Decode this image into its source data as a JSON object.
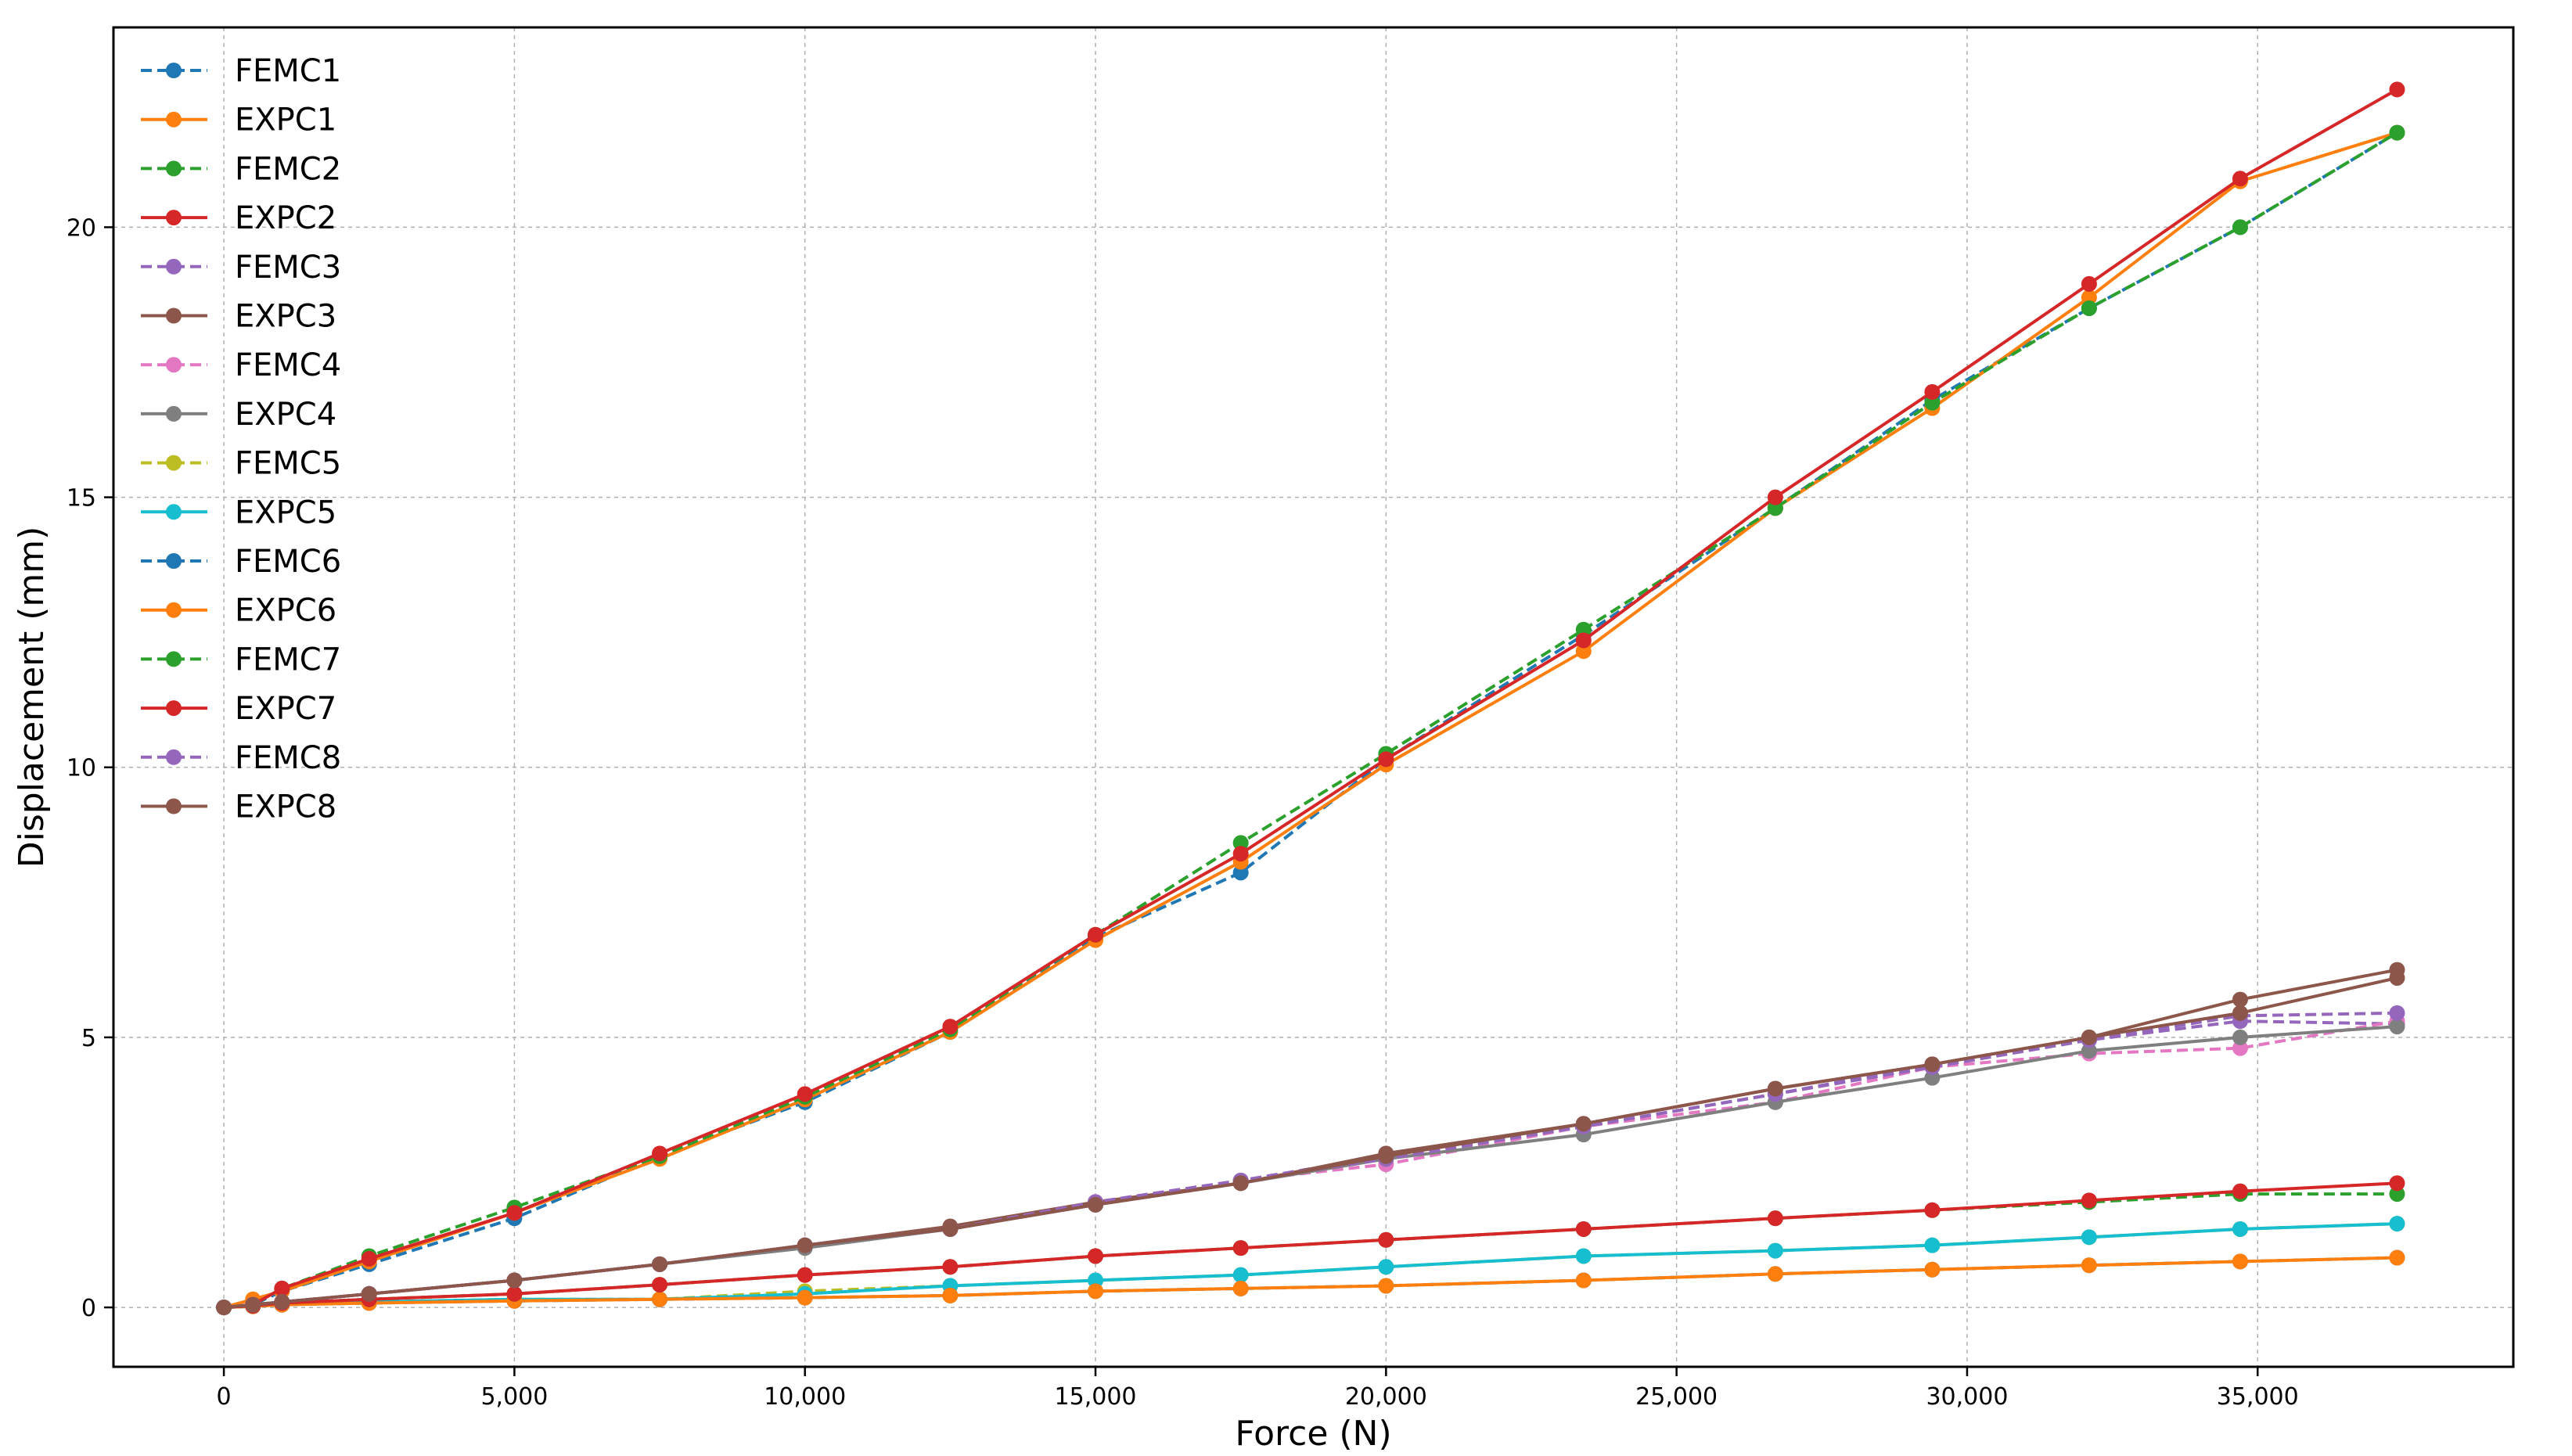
{
  "chart_data": {
    "type": "line",
    "xlabel": "Force (N)",
    "ylabel": "Displacement (mm)",
    "xlim": [
      -1900,
      39400
    ],
    "ylim": [
      -1.1,
      23.7
    ],
    "xticks": [
      0,
      5000,
      10000,
      15000,
      20000,
      25000,
      30000,
      35000
    ],
    "xtick_labels": [
      "0",
      "5,000",
      "10,000",
      "15,000",
      "20,000",
      "25,000",
      "30,000",
      "35,000"
    ],
    "yticks": [
      0,
      5,
      10,
      15,
      20
    ],
    "ytick_labels": [
      "0",
      "5",
      "10",
      "15",
      "20"
    ],
    "grid": true,
    "legend_position": "top-left",
    "series": [
      {
        "name": "FEMC1",
        "style": "dashed",
        "color": "#1f77b4",
        "x": [
          0,
          500,
          1000,
          2500,
          5000,
          7500,
          10000,
          12500,
          15000,
          17500,
          20000,
          23400,
          26700,
          29400,
          32100,
          34700,
          37400
        ],
        "y": [
          0,
          0.05,
          0.3,
          0.8,
          1.65,
          2.8,
          3.8,
          5.1,
          6.85,
          8.05,
          10.15,
          12.45,
          14.8,
          16.8,
          18.5,
          20.0,
          21.75
        ]
      },
      {
        "name": "EXPC1",
        "style": "solid",
        "color": "#ff7f0e",
        "x": [
          0,
          500,
          1000,
          2500,
          5000,
          7500,
          10000,
          12500,
          15000,
          17500,
          20000,
          23400,
          26700,
          29400,
          32100,
          34700,
          37400
        ],
        "y": [
          0,
          0.15,
          0.3,
          0.85,
          1.75,
          2.75,
          3.85,
          5.1,
          6.8,
          8.25,
          10.05,
          12.15,
          14.8,
          16.65,
          18.7,
          20.85,
          21.75
        ]
      },
      {
        "name": "FEMC2",
        "style": "dashed",
        "color": "#2ca02c",
        "x": [
          0,
          500,
          1000,
          2500,
          5000,
          7500,
          10000,
          12500,
          15000,
          17500,
          20000,
          23400,
          26700,
          29400,
          32100,
          34700,
          37400
        ],
        "y": [
          0,
          0.05,
          0.35,
          0.95,
          1.85,
          2.8,
          3.9,
          5.15,
          6.9,
          8.6,
          10.25,
          12.55,
          14.8,
          16.75,
          18.5,
          20.0,
          21.75
        ]
      },
      {
        "name": "EXPC2",
        "style": "solid",
        "color": "#d62728",
        "x": [
          0,
          500,
          1000,
          2500,
          5000,
          7500,
          10000,
          12500,
          15000,
          17500,
          20000,
          23400,
          26700,
          29400,
          32100,
          34700,
          37400
        ],
        "y": [
          0,
          0.05,
          0.35,
          0.9,
          1.75,
          2.85,
          3.95,
          5.2,
          6.9,
          8.4,
          10.15,
          12.35,
          15.0,
          16.95,
          18.95,
          20.9,
          22.55
        ]
      },
      {
        "name": "FEMC3",
        "style": "dashed",
        "color": "#9467bd",
        "x": [
          0,
          500,
          1000,
          2500,
          5000,
          7500,
          10000,
          12500,
          15000,
          17500,
          20000,
          23400,
          26700,
          29400,
          32100,
          34700,
          37400
        ],
        "y": [
          0,
          0.05,
          0.1,
          0.25,
          0.5,
          0.8,
          1.15,
          1.45,
          1.95,
          2.35,
          2.8,
          3.35,
          3.95,
          4.5,
          4.95,
          5.3,
          5.25
        ]
      },
      {
        "name": "EXPC3",
        "style": "solid",
        "color": "#8c564b",
        "x": [
          0,
          500,
          1000,
          2500,
          5000,
          7500,
          10000,
          12500,
          15000,
          17500,
          20000,
          23400,
          26700,
          29400,
          32100,
          34700,
          37400
        ],
        "y": [
          0,
          0.05,
          0.1,
          0.25,
          0.5,
          0.8,
          1.15,
          1.5,
          1.95,
          2.3,
          2.85,
          3.4,
          4.05,
          4.5,
          5.0,
          5.7,
          6.25
        ]
      },
      {
        "name": "FEMC4",
        "style": "dashed",
        "color": "#e377c2",
        "x": [
          0,
          500,
          1000,
          2500,
          5000,
          7500,
          10000,
          12500,
          15000,
          17500,
          20000,
          23400,
          26700,
          29400,
          32100,
          34700,
          37400
        ],
        "y": [
          0,
          0.05,
          0.1,
          0.25,
          0.5,
          0.8,
          1.15,
          1.45,
          1.95,
          2.35,
          2.65,
          3.35,
          3.8,
          4.45,
          4.7,
          4.8,
          5.3
        ]
      },
      {
        "name": "EXPC4",
        "style": "solid",
        "color": "#7f7f7f",
        "x": [
          0,
          500,
          1000,
          2500,
          5000,
          7500,
          10000,
          12500,
          15000,
          17500,
          20000,
          23400,
          26700,
          29400,
          32100,
          34700,
          37400
        ],
        "y": [
          0,
          0.05,
          0.1,
          0.25,
          0.5,
          0.8,
          1.1,
          1.45,
          1.9,
          2.3,
          2.75,
          3.2,
          3.8,
          4.25,
          4.75,
          5.0,
          5.2
        ]
      },
      {
        "name": "FEMC5",
        "style": "dashed",
        "color": "#bcbd22",
        "x": [
          0,
          500,
          1000,
          2500,
          5000,
          7500,
          10000,
          12500,
          15000,
          17500,
          20000,
          23400,
          26700,
          29400,
          32100,
          34700,
          37400
        ],
        "y": [
          0,
          0.02,
          0.05,
          0.1,
          0.15,
          0.15,
          0.3,
          0.4,
          0.5,
          0.6,
          0.75,
          0.95,
          1.05,
          1.15,
          1.3,
          1.45,
          1.55
        ]
      },
      {
        "name": "EXPC5",
        "style": "solid",
        "color": "#17becf",
        "x": [
          0,
          500,
          1000,
          2500,
          5000,
          7500,
          10000,
          12500,
          15000,
          17500,
          20000,
          23400,
          26700,
          29400,
          32100,
          34700,
          37400
        ],
        "y": [
          0,
          0.02,
          0.05,
          0.1,
          0.15,
          0.15,
          0.25,
          0.4,
          0.5,
          0.6,
          0.75,
          0.95,
          1.05,
          1.15,
          1.3,
          1.45,
          1.55
        ]
      },
      {
        "name": "FEMC6",
        "style": "dashed",
        "color": "#1f77b4",
        "x": [
          0,
          500,
          1000,
          2500,
          5000,
          7500,
          10000,
          12500,
          15000,
          17500,
          20000,
          23400,
          26700,
          29400,
          32100,
          34700,
          37400
        ],
        "y": [
          0,
          0.02,
          0.05,
          0.08,
          0.12,
          0.15,
          0.18,
          0.22,
          0.3,
          0.35,
          0.4,
          0.5,
          0.62,
          0.7,
          0.78,
          0.85,
          0.92
        ]
      },
      {
        "name": "EXPC6",
        "style": "solid",
        "color": "#ff7f0e",
        "x": [
          0,
          500,
          1000,
          2500,
          5000,
          7500,
          10000,
          12500,
          15000,
          17500,
          20000,
          23400,
          26700,
          29400,
          32100,
          34700,
          37400
        ],
        "y": [
          0,
          0.02,
          0.05,
          0.08,
          0.12,
          0.15,
          0.18,
          0.22,
          0.3,
          0.35,
          0.4,
          0.5,
          0.62,
          0.7,
          0.78,
          0.85,
          0.92
        ]
      },
      {
        "name": "FEMC7",
        "style": "dashed",
        "color": "#2ca02c",
        "x": [
          0,
          500,
          1000,
          2500,
          5000,
          7500,
          10000,
          12500,
          15000,
          17500,
          20000,
          23400,
          26700,
          29400,
          32100,
          34700,
          37400
        ],
        "y": [
          0,
          0.03,
          0.08,
          0.15,
          0.25,
          0.42,
          0.6,
          0.75,
          0.95,
          1.1,
          1.25,
          1.45,
          1.65,
          1.8,
          1.95,
          2.1,
          2.1
        ]
      },
      {
        "name": "EXPC7",
        "style": "solid",
        "color": "#d62728",
        "x": [
          0,
          500,
          1000,
          2500,
          5000,
          7500,
          10000,
          12500,
          15000,
          17500,
          20000,
          23400,
          26700,
          29400,
          32100,
          34700,
          37400
        ],
        "y": [
          0,
          0.03,
          0.08,
          0.15,
          0.25,
          0.42,
          0.6,
          0.75,
          0.95,
          1.1,
          1.25,
          1.45,
          1.65,
          1.8,
          1.98,
          2.15,
          2.3
        ]
      },
      {
        "name": "FEMC8",
        "style": "dashed",
        "color": "#9467bd",
        "x": [
          0,
          500,
          1000,
          2500,
          5000,
          7500,
          10000,
          12500,
          15000,
          17500,
          20000,
          23400,
          26700,
          29400,
          32100,
          34700,
          37400
        ],
        "y": [
          0,
          0.05,
          0.1,
          0.25,
          0.5,
          0.8,
          1.15,
          1.45,
          1.95,
          2.35,
          2.75,
          3.35,
          3.95,
          4.45,
          4.95,
          5.4,
          5.45
        ]
      },
      {
        "name": "EXPC8",
        "style": "solid",
        "color": "#8c564b",
        "x": [
          0,
          500,
          1000,
          2500,
          5000,
          7500,
          10000,
          12500,
          15000,
          17500,
          20000,
          23400,
          26700,
          29400,
          32100,
          34700,
          37400
        ],
        "y": [
          0,
          0.05,
          0.1,
          0.25,
          0.5,
          0.8,
          1.15,
          1.45,
          1.9,
          2.3,
          2.8,
          3.4,
          4.05,
          4.5,
          5.0,
          5.45,
          6.1
        ]
      }
    ]
  }
}
